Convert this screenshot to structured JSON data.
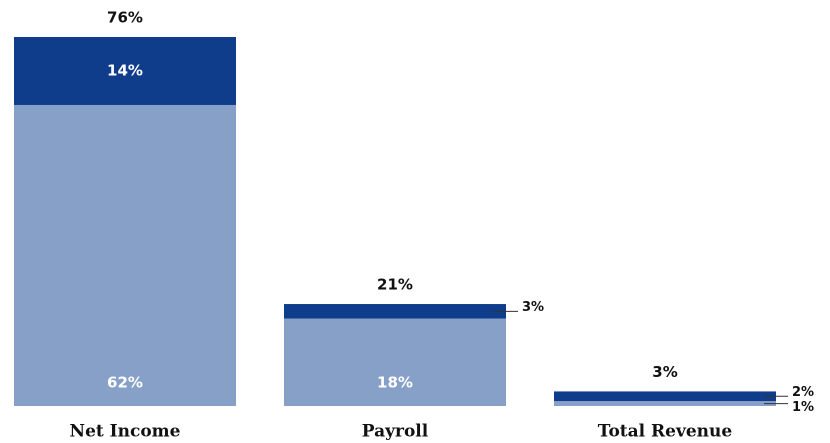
{
  "chart_data": {
    "type": "stacked-bar",
    "categories": [
      "Net Income",
      "Payroll",
      "Total Revenue"
    ],
    "series": [
      {
        "color": "#87a0c8",
        "values": [
          62,
          18,
          1
        ],
        "value_labels": [
          "62%",
          "18%",
          "1%"
        ]
      },
      {
        "color": "#0f3d8c",
        "values": [
          14,
          3,
          2
        ],
        "value_labels": [
          "14%",
          "3%",
          "2%"
        ]
      }
    ],
    "totals": [
      76,
      21,
      3
    ],
    "total_labels": [
      "76%",
      "21%",
      "3%"
    ],
    "ylim": [
      0,
      76
    ]
  }
}
